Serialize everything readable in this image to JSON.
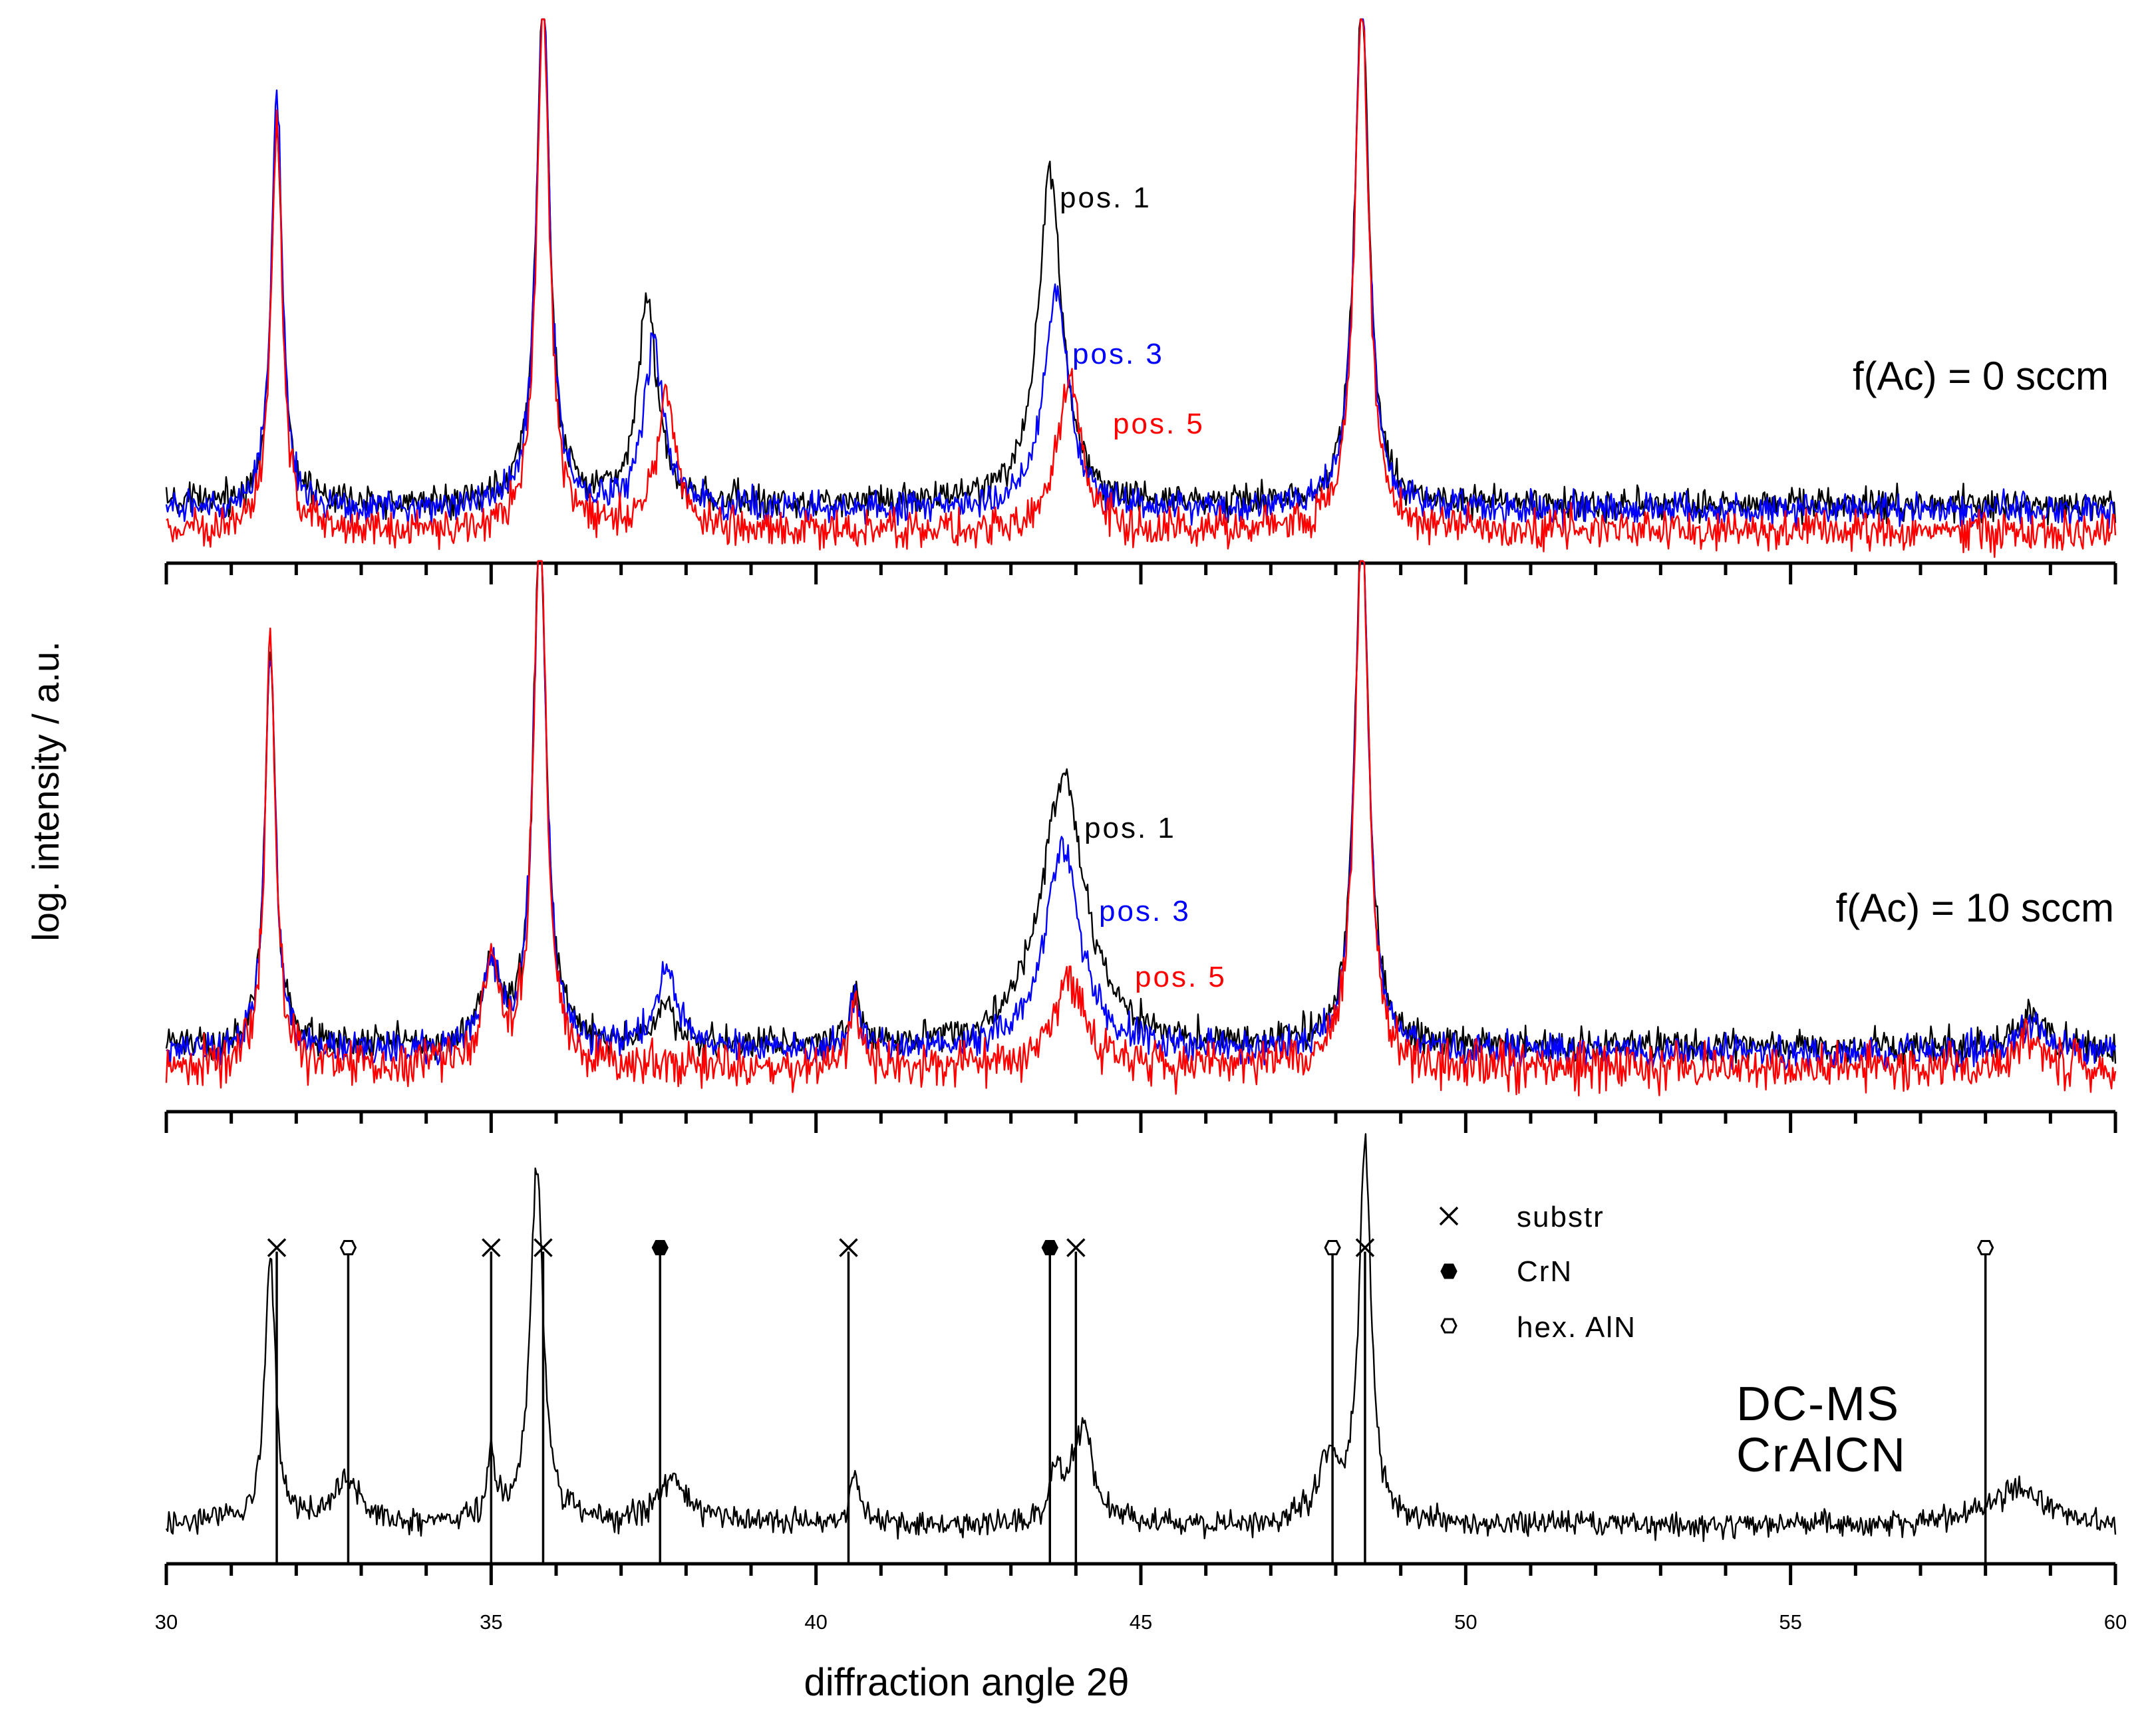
{
  "chart_data": {
    "type": "line",
    "xlabel": "diffraction angle 2θ",
    "ylabel": "log. intensity / a.u.",
    "xlim": [
      30,
      60
    ],
    "x_ticks": [
      "30",
      "35",
      "40",
      "45",
      "50",
      "55",
      "60"
    ],
    "colors": {
      "pos1": "#000000",
      "pos3": "#0000ff",
      "pos5": "#ff0000",
      "reference": "#000000"
    },
    "panels": [
      {
        "condition_label": "f(Ac) = 0 sccm",
        "series": [
          {
            "name": "pos. 1",
            "color": "#000000",
            "baseline": 0.11,
            "noise": 0.025,
            "peaks": [
              [
                31.7,
                0.73,
                0.1
              ],
              [
                35.8,
                0.98,
                0.12
              ],
              [
                37.4,
                0.38,
                0.18
              ],
              [
                43.6,
                0.63,
                0.22
              ],
              [
                48.4,
                0.97,
                0.13
              ]
            ]
          },
          {
            "name": "pos. 3",
            "color": "#0000ff",
            "baseline": 0.1,
            "noise": 0.025,
            "peaks": [
              [
                31.7,
                0.79,
                0.1
              ],
              [
                35.8,
                0.98,
                0.12
              ],
              [
                37.5,
                0.31,
                0.18
              ],
              [
                43.7,
                0.41,
                0.22
              ],
              [
                48.4,
                0.97,
                0.13
              ]
            ]
          },
          {
            "name": "pos. 5",
            "color": "#ff0000",
            "baseline": 0.06,
            "noise": 0.03,
            "peaks": [
              [
                31.7,
                0.77,
                0.1
              ],
              [
                35.8,
                0.99,
                0.12
              ],
              [
                37.7,
                0.25,
                0.18
              ],
              [
                43.9,
                0.28,
                0.22
              ],
              [
                48.4,
                0.99,
                0.13
              ]
            ]
          }
        ]
      },
      {
        "condition_label": "f(Ac) = 10 sccm",
        "series": [
          {
            "name": "pos. 1",
            "color": "#000000",
            "baseline": 0.12,
            "noise": 0.025,
            "peaks": [
              [
                31.6,
                0.72,
                0.1
              ],
              [
                35.0,
                0.15,
                0.15
              ],
              [
                35.75,
                0.97,
                0.12
              ],
              [
                37.7,
                0.07,
                0.2
              ],
              [
                40.6,
                0.1,
                0.1
              ],
              [
                43.8,
                0.5,
                0.4
              ],
              [
                48.4,
                0.97,
                0.13
              ],
              [
                58.7,
                0.06,
                0.2
              ]
            ]
          },
          {
            "name": "pos. 3",
            "color": "#0000ff",
            "baseline": 0.11,
            "noise": 0.025,
            "peaks": [
              [
                31.6,
                0.74,
                0.1
              ],
              [
                35.0,
                0.15,
                0.15
              ],
              [
                35.75,
                0.97,
                0.12
              ],
              [
                37.7,
                0.15,
                0.2
              ],
              [
                40.6,
                0.1,
                0.1
              ],
              [
                43.8,
                0.38,
                0.32
              ],
              [
                48.4,
                0.97,
                0.13
              ],
              [
                58.7,
                0.06,
                0.2
              ]
            ]
          },
          {
            "name": "pos. 5",
            "color": "#ff0000",
            "baseline": 0.08,
            "noise": 0.035,
            "peaks": [
              [
                31.6,
                0.79,
                0.1
              ],
              [
                35.0,
                0.18,
                0.15
              ],
              [
                35.75,
                0.99,
                0.12
              ],
              [
                40.6,
                0.12,
                0.1
              ],
              [
                43.9,
                0.18,
                0.25
              ],
              [
                48.4,
                0.99,
                0.13
              ],
              [
                58.7,
                0.06,
                0.2
              ]
            ]
          }
        ]
      },
      {
        "method_label": [
          "DC-MS",
          "CrAlCN"
        ],
        "series": [
          {
            "name": "",
            "color": "#000000",
            "baseline": 0.09,
            "noise": 0.025,
            "peaks": [
              [
                31.6,
                0.6,
                0.1
              ],
              [
                32.8,
                0.1,
                0.25
              ],
              [
                35.0,
                0.15,
                0.08
              ],
              [
                35.7,
                0.82,
                0.12
              ],
              [
                37.8,
                0.1,
                0.3
              ],
              [
                40.6,
                0.12,
                0.08
              ],
              [
                43.7,
                0.1,
                0.1
              ],
              [
                44.1,
                0.22,
                0.2
              ],
              [
                47.9,
                0.15,
                0.2
              ],
              [
                48.45,
                0.88,
                0.11
              ],
              [
                58.5,
                0.08,
                0.5
              ]
            ]
          }
        ],
        "reference_lines": [
          {
            "x": 31.7,
            "phase": "substr",
            "height": 0.72
          },
          {
            "x": 32.8,
            "phase": "hex. AlN",
            "height": 0.72
          },
          {
            "x": 35.0,
            "phase": "substr",
            "height": 0.72
          },
          {
            "x": 35.8,
            "phase": "substr",
            "height": 0.72
          },
          {
            "x": 37.6,
            "phase": "CrN",
            "height": 0.72
          },
          {
            "x": 40.5,
            "phase": "substr",
            "height": 0.72
          },
          {
            "x": 43.6,
            "phase": "CrN",
            "height": 0.72
          },
          {
            "x": 44.0,
            "phase": "substr",
            "height": 0.72
          },
          {
            "x": 47.95,
            "phase": "hex. AlN",
            "height": 0.72
          },
          {
            "x": 48.45,
            "phase": "substr",
            "height": 0.72
          },
          {
            "x": 58.0,
            "phase": "hex. AlN",
            "height": 0.72
          }
        ],
        "legend": [
          {
            "marker": "cross",
            "label": "substr"
          },
          {
            "marker": "filled-hexagon",
            "label": "CrN"
          },
          {
            "marker": "open-hexagon",
            "label": "hex. AlN"
          }
        ]
      }
    ]
  }
}
